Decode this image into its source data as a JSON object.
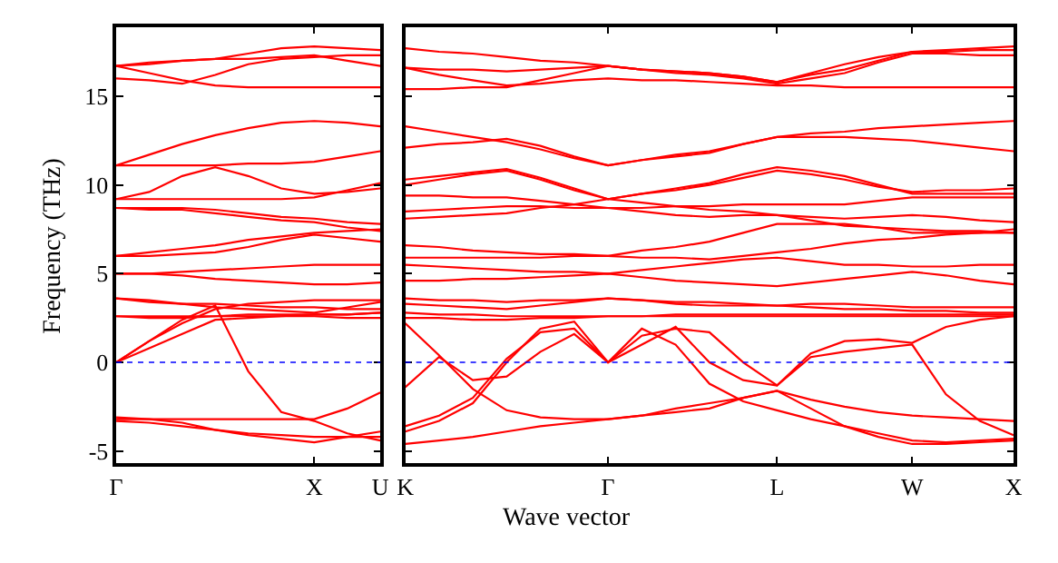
{
  "chart_data": [
    {
      "type": "line",
      "ylabel": "Frequency (THz)",
      "categories": [
        "Γ",
        null,
        null,
        null,
        null,
        null,
        "X",
        null,
        "U"
      ],
      "ylim": [
        -5.7,
        18.9
      ],
      "yticks": [
        -5,
        0,
        5,
        10,
        15
      ],
      "marker": "none",
      "line_style": "solid",
      "ref_lines": [
        {
          "axis": "y",
          "value": 0,
          "color": "#0000ff",
          "line_style": "dotted"
        }
      ],
      "series": [
        {
          "color": "#ff0000",
          "values": [
            16.7,
            16.8,
            17.0,
            17.1,
            17.4,
            17.7,
            17.8,
            17.7,
            17.6
          ]
        },
        {
          "color": "#ff0000",
          "values": [
            16.7,
            16.9,
            17.0,
            17.1,
            17.1,
            17.2,
            17.3,
            17.0,
            16.7
          ]
        },
        {
          "color": "#ff0000",
          "values": [
            16.7,
            16.3,
            15.9,
            15.6,
            15.5,
            15.5,
            15.5,
            15.5,
            15.5
          ]
        },
        {
          "color": "#ff0000",
          "values": [
            16.0,
            15.9,
            15.7,
            16.2,
            16.8,
            17.1,
            17.2,
            17.3,
            17.3
          ]
        },
        {
          "color": "#ff0000",
          "values": [
            11.1,
            11.7,
            12.3,
            12.8,
            13.2,
            13.5,
            13.6,
            13.5,
            13.3
          ]
        },
        {
          "color": "#ff0000",
          "values": [
            11.1,
            11.1,
            11.1,
            11.1,
            11.2,
            11.2,
            11.3,
            11.6,
            11.9
          ]
        },
        {
          "color": "#ff0000",
          "values": [
            9.2,
            9.6,
            10.5,
            11.0,
            10.5,
            9.8,
            9.5,
            9.6,
            9.8
          ]
        },
        {
          "color": "#ff0000",
          "values": [
            9.2,
            9.2,
            9.2,
            9.2,
            9.2,
            9.2,
            9.3,
            9.7,
            10.1
          ]
        },
        {
          "color": "#ff0000",
          "values": [
            8.7,
            8.6,
            8.6,
            8.4,
            8.2,
            8.0,
            7.9,
            7.6,
            7.4
          ]
        },
        {
          "color": "#ff0000",
          "values": [
            8.7,
            8.7,
            8.7,
            8.6,
            8.4,
            8.2,
            8.1,
            7.9,
            7.8
          ]
        },
        {
          "color": "#ff0000",
          "values": [
            6.0,
            6.2,
            6.4,
            6.6,
            6.9,
            7.1,
            7.3,
            7.4,
            7.5
          ]
        },
        {
          "color": "#ff0000",
          "values": [
            6.0,
            6.0,
            6.1,
            6.2,
            6.5,
            6.9,
            7.2,
            7.0,
            6.8
          ]
        },
        {
          "color": "#ff0000",
          "values": [
            5.0,
            5.0,
            5.1,
            5.2,
            5.3,
            5.4,
            5.5,
            5.5,
            5.5
          ]
        },
        {
          "color": "#ff0000",
          "values": [
            5.0,
            5.0,
            4.9,
            4.7,
            4.6,
            4.5,
            4.4,
            4.4,
            4.5
          ]
        },
        {
          "color": "#ff0000",
          "values": [
            3.6,
            3.5,
            3.3,
            3.1,
            3.0,
            2.9,
            2.8,
            3.1,
            3.4
          ]
        },
        {
          "color": "#ff0000",
          "values": [
            3.6,
            3.4,
            3.3,
            3.3,
            3.2,
            3.1,
            3.1,
            3.0,
            3.0
          ]
        },
        {
          "color": "#ff0000",
          "values": [
            2.6,
            2.6,
            2.6,
            2.6,
            2.7,
            2.7,
            2.7,
            2.7,
            2.8
          ]
        },
        {
          "color": "#ff0000",
          "values": [
            2.6,
            2.5,
            2.5,
            2.6,
            2.6,
            2.6,
            2.6,
            2.5,
            2.5
          ]
        },
        {
          "color": "#ff0000",
          "values": [
            0,
            1.2,
            2.2,
            3.0,
            3.3,
            3.4,
            3.5,
            3.5,
            3.5
          ]
        },
        {
          "color": "#ff0000",
          "values": [
            0,
            0.8,
            1.6,
            2.4,
            2.5,
            2.6,
            2.7,
            2.7,
            2.8
          ]
        },
        {
          "color": "#ff0000",
          "values": [
            0,
            1.2,
            2.4,
            3.2,
            -0.5,
            -2.8,
            -3.3,
            -4.0,
            -4.4
          ]
        },
        {
          "color": "#ff0000",
          "values": [
            -3.2,
            -3.2,
            -3.2,
            -3.2,
            -3.2,
            -3.2,
            -3.2,
            -2.6,
            -1.7
          ]
        },
        {
          "color": "#ff0000",
          "values": [
            -3.3,
            -3.4,
            -3.6,
            -3.8,
            -4.0,
            -4.1,
            -4.2,
            -4.2,
            -4.2
          ]
        },
        {
          "color": "#ff0000",
          "values": [
            -3.1,
            -3.2,
            -3.4,
            -3.8,
            -4.1,
            -4.3,
            -4.5,
            -4.2,
            -3.9
          ]
        }
      ]
    },
    {
      "type": "line",
      "xlabel": "Wave vector",
      "categories": [
        "K",
        null,
        null,
        null,
        null,
        null,
        "Γ",
        null,
        null,
        null,
        null,
        "L",
        null,
        null,
        null,
        "W",
        null,
        null,
        "X"
      ],
      "ylim": [
        -5.7,
        18.9
      ],
      "yticks": [
        -5,
        0,
        5,
        10,
        15
      ],
      "tick_labels": "x",
      "marker": "none",
      "line_style": "solid",
      "ref_lines": [
        {
          "axis": "y",
          "value": 0,
          "color": "#0000ff",
          "line_style": "dotted"
        }
      ],
      "series": [
        {
          "color": "#ff0000",
          "values": [
            17.7,
            17.5,
            17.4,
            17.2,
            17.0,
            16.9,
            16.7,
            16.5,
            16.4,
            16.3,
            16.1,
            15.8,
            16.3,
            16.8,
            17.2,
            17.5,
            17.6,
            17.7,
            17.8
          ]
        },
        {
          "color": "#ff0000",
          "values": [
            16.6,
            16.5,
            16.5,
            16.4,
            16.5,
            16.6,
            16.7,
            16.5,
            16.3,
            16.2,
            16.0,
            15.7,
            16.0,
            16.3,
            16.9,
            17.4,
            17.4,
            17.3,
            17.3
          ]
        },
        {
          "color": "#ff0000",
          "values": [
            16.6,
            16.2,
            15.9,
            15.6,
            15.7,
            15.9,
            16.0,
            15.9,
            15.9,
            15.8,
            15.7,
            15.6,
            15.6,
            15.5,
            15.5,
            15.5,
            15.5,
            15.5,
            15.5
          ]
        },
        {
          "color": "#ff0000",
          "values": [
            15.4,
            15.4,
            15.5,
            15.5,
            15.9,
            16.3,
            16.7,
            16.5,
            16.4,
            16.3,
            16.1,
            15.8,
            16.2,
            16.5,
            17.0,
            17.5,
            17.5,
            17.6,
            17.6
          ]
        },
        {
          "color": "#ff0000",
          "values": [
            13.3,
            13.0,
            12.7,
            12.4,
            12.0,
            11.5,
            11.1,
            11.4,
            11.7,
            11.9,
            12.3,
            12.7,
            12.9,
            13.0,
            13.2,
            13.3,
            13.4,
            13.5,
            13.6
          ]
        },
        {
          "color": "#ff0000",
          "values": [
            12.1,
            12.3,
            12.4,
            12.6,
            12.2,
            11.6,
            11.1,
            11.4,
            11.6,
            11.8,
            12.3,
            12.7,
            12.7,
            12.7,
            12.6,
            12.5,
            12.3,
            12.1,
            11.9
          ]
        },
        {
          "color": "#ff0000",
          "values": [
            10.3,
            10.5,
            10.7,
            10.9,
            10.4,
            9.8,
            9.2,
            9.5,
            9.8,
            10.1,
            10.6,
            11.0,
            10.8,
            10.5,
            10.0,
            9.5,
            9.5,
            9.5,
            9.5
          ]
        },
        {
          "color": "#ff0000",
          "values": [
            10.0,
            10.3,
            10.6,
            10.8,
            10.3,
            9.7,
            9.2,
            9.5,
            9.7,
            10.0,
            10.4,
            10.8,
            10.6,
            10.3,
            9.9,
            9.6,
            9.7,
            9.7,
            9.8
          ]
        },
        {
          "color": "#ff0000",
          "values": [
            9.4,
            9.4,
            9.3,
            9.3,
            9.1,
            8.9,
            8.7,
            8.7,
            8.8,
            8.8,
            8.9,
            8.9,
            8.9,
            8.9,
            9.1,
            9.3,
            9.3,
            9.3,
            9.3
          ]
        },
        {
          "color": "#ff0000",
          "values": [
            8.5,
            8.6,
            8.7,
            8.8,
            8.8,
            8.7,
            8.7,
            8.5,
            8.3,
            8.2,
            8.3,
            8.3,
            8.2,
            8.1,
            8.2,
            8.3,
            8.2,
            8.0,
            7.9
          ]
        },
        {
          "color": "#ff0000",
          "values": [
            8.1,
            8.2,
            8.3,
            8.4,
            8.7,
            8.9,
            9.2,
            9.0,
            8.8,
            8.6,
            8.5,
            8.3,
            8.0,
            7.7,
            7.6,
            7.5,
            7.4,
            7.4,
            7.3
          ]
        },
        {
          "color": "#ff0000",
          "values": [
            6.6,
            6.5,
            6.3,
            6.2,
            6.1,
            6.1,
            6.0,
            6.3,
            6.5,
            6.8,
            7.3,
            7.8,
            7.8,
            7.8,
            7.6,
            7.3,
            7.3,
            7.3,
            7.3
          ]
        },
        {
          "color": "#ff0000",
          "values": [
            5.9,
            5.9,
            5.9,
            5.9,
            5.9,
            6.0,
            6.0,
            5.9,
            5.9,
            5.8,
            6.0,
            6.2,
            6.4,
            6.7,
            6.9,
            7.0,
            7.2,
            7.3,
            7.5
          ]
        },
        {
          "color": "#ff0000",
          "values": [
            5.5,
            5.4,
            5.3,
            5.2,
            5.1,
            5.1,
            5.0,
            5.2,
            5.4,
            5.6,
            5.8,
            5.9,
            5.7,
            5.5,
            5.5,
            5.4,
            5.4,
            5.5,
            5.5
          ]
        },
        {
          "color": "#ff0000",
          "values": [
            4.6,
            4.6,
            4.7,
            4.7,
            4.8,
            4.9,
            5.0,
            4.8,
            4.6,
            4.5,
            4.4,
            4.3,
            4.5,
            4.7,
            4.9,
            5.1,
            4.9,
            4.6,
            4.4
          ]
        },
        {
          "color": "#ff0000",
          "values": [
            3.6,
            3.5,
            3.5,
            3.4,
            3.5,
            3.5,
            3.6,
            3.5,
            3.4,
            3.4,
            3.3,
            3.2,
            3.3,
            3.3,
            3.2,
            3.1,
            3.1,
            3.1,
            3.1
          ]
        },
        {
          "color": "#ff0000",
          "values": [
            3.3,
            3.2,
            3.1,
            3.0,
            3.2,
            3.4,
            3.6,
            3.5,
            3.3,
            3.2,
            3.2,
            3.2,
            3.1,
            3.0,
            3.0,
            2.9,
            2.9,
            2.8,
            2.8
          ]
        },
        {
          "color": "#ff0000",
          "values": [
            2.8,
            2.7,
            2.7,
            2.6,
            2.6,
            2.6,
            2.6,
            2.6,
            2.7,
            2.7,
            2.7,
            2.7,
            2.7,
            2.7,
            2.7,
            2.7,
            2.7,
            2.7,
            2.7
          ]
        },
        {
          "color": "#ff0000",
          "values": [
            2.5,
            2.5,
            2.4,
            2.4,
            2.5,
            2.5,
            2.6,
            2.6,
            2.6,
            2.6,
            2.6,
            2.6,
            2.6,
            2.6,
            2.6,
            2.6,
            2.6,
            2.6,
            2.6
          ]
        },
        {
          "color": "#ff0000",
          "values": [
            2.2,
            0.4,
            -1.5,
            -2.7,
            -3.1,
            -3.2,
            -3.2,
            -3.0,
            -2.6,
            -2.3,
            -2.0,
            -1.6,
            -2.1,
            -2.5,
            -2.8,
            -3.0,
            -3.1,
            -3.2,
            -3.3
          ]
        },
        {
          "color": "#ff0000",
          "values": [
            -1.4,
            0.3,
            -1.0,
            -0.8,
            0.6,
            1.6,
            0,
            1.9,
            1.0,
            -1.2,
            -2.2,
            -2.7,
            -3.2,
            -3.6,
            -4.0,
            -4.4,
            -4.5,
            -4.4,
            -4.3
          ]
        },
        {
          "color": "#ff0000",
          "values": [
            -3.6,
            -3.0,
            -2.0,
            0.2,
            1.7,
            1.9,
            0,
            1.0,
            2.0,
            0,
            -1.0,
            -1.3,
            0.5,
            1.2,
            1.3,
            1.1,
            2.0,
            2.4,
            2.6
          ]
        },
        {
          "color": "#ff0000",
          "values": [
            -3.9,
            -3.3,
            -2.3,
            0,
            1.9,
            2.3,
            0,
            1.5,
            1.9,
            1.7,
            0,
            -1.3,
            0.3,
            0.6,
            0.8,
            1.0,
            -1.8,
            -3.3,
            -4.1
          ]
        },
        {
          "color": "#ff0000",
          "values": [
            -4.6,
            -4.4,
            -4.2,
            -3.9,
            -3.6,
            -3.4,
            -3.2,
            -3.0,
            -2.8,
            -2.6,
            -2.0,
            -1.6,
            -2.6,
            -3.6,
            -4.2,
            -4.6,
            -4.6,
            -4.5,
            -4.4
          ]
        }
      ]
    }
  ]
}
